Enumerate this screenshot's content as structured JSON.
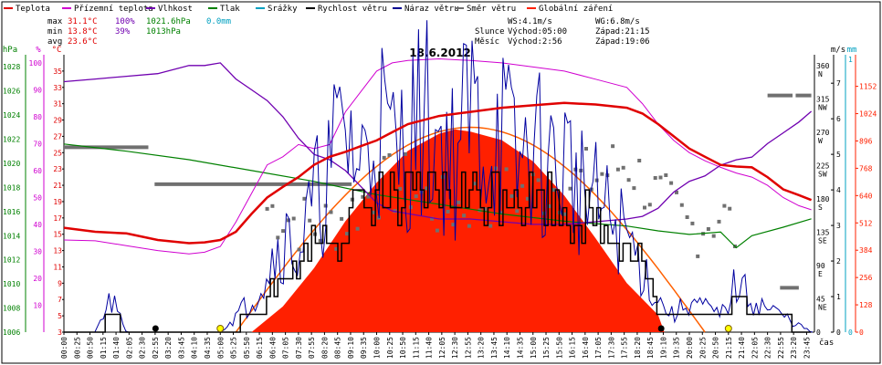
{
  "legend": [
    {
      "label": "Teplota",
      "color": "#e00000"
    },
    {
      "label": "Přízemní teplota",
      "color": "#d000d0"
    },
    {
      "label": "Vlhkost",
      "color": "#7000b0"
    },
    {
      "label": "Tlak",
      "color": "#008000"
    },
    {
      "label": "Srážky",
      "color": "#00a0c0"
    },
    {
      "label": "Rychlost větru",
      "color": "#000000"
    },
    {
      "label": "Náraz větru",
      "color": "#000090"
    },
    {
      "label": "Směr větru",
      "color": "#707070"
    },
    {
      "label": "Globální záření",
      "color": "#ff2000"
    }
  ],
  "stats": {
    "max_label": "max",
    "max_temp": "31.1°C",
    "max_hum": "100%",
    "max_press": "1021.6hPa",
    "max_rain": "0.0mm",
    "min_label": "min",
    "min_temp": "13.8°C",
    "min_hum": "39%",
    "min_press": "1013hPa",
    "avg_label": "avg",
    "avg_temp": "23.6°C"
  },
  "info": {
    "ws": "WS:4.1m/s",
    "wg": "WG:6.8m/s",
    "sun_label": "Slunce",
    "sun_rise": "Východ:05:00",
    "sun_set": "Západ:21:15",
    "moon_label": "Měsíc",
    "moon_rise": "Východ:2:56",
    "moon_set": "Západ:19:06"
  },
  "chart_data": {
    "type": "line",
    "title": "18.6.2012",
    "xlabel": "čas",
    "x_ticks": [
      "00:00",
      "00:25",
      "00:50",
      "01:15",
      "01:40",
      "02:05",
      "02:30",
      "02:55",
      "03:20",
      "03:45",
      "04:10",
      "04:35",
      "05:00",
      "05:25",
      "05:50",
      "06:15",
      "06:40",
      "07:05",
      "07:30",
      "07:55",
      "08:20",
      "08:45",
      "09:10",
      "09:35",
      "10:00",
      "10:25",
      "10:50",
      "11:15",
      "11:40",
      "12:05",
      "12:30",
      "12:55",
      "13:20",
      "13:45",
      "14:10",
      "14:35",
      "15:00",
      "15:25",
      "15:50",
      "16:15",
      "16:40",
      "17:05",
      "17:30",
      "17:55",
      "18:20",
      "18:45",
      "19:10",
      "19:35",
      "20:00",
      "20:25",
      "20:50",
      "21:15",
      "21:40",
      "22:05",
      "22:30",
      "22:55",
      "23:20",
      "23:45"
    ],
    "axes": {
      "pressure": {
        "unit": "hPa",
        "ticks": [
          "1028",
          "1026",
          "1024",
          "1022",
          "1020",
          "1018",
          "1016",
          "1014",
          "1012",
          "1010",
          "1008",
          "1006"
        ],
        "color": "#008000"
      },
      "humidity": {
        "unit": "%",
        "ticks": [
          "100",
          "90",
          "80",
          "70",
          "60",
          "50",
          "40",
          "30",
          "20",
          "10"
        ],
        "color": "#d000d0"
      },
      "temperature": {
        "unit": "°C",
        "ticks": [
          "35",
          "33",
          "31",
          "29",
          "27",
          "25",
          "23",
          "21",
          "19",
          "17",
          "15",
          "13",
          "11",
          "9",
          "7",
          "5",
          "3"
        ],
        "color": "#e00000"
      },
      "wind_dir": {
        "ticks": [
          "360",
          "315",
          "270",
          "225",
          "180",
          "135",
          "90",
          "45",
          "0"
        ],
        "dirs": [
          "N",
          "NW",
          "W",
          "SW",
          "S",
          "SE",
          "E",
          "NE",
          ""
        ]
      },
      "wind_speed": {
        "unit": "m/s",
        "ticks": [
          "7",
          "6",
          "5",
          "4",
          "3",
          "2",
          "1",
          "0"
        ]
      },
      "rain": {
        "unit": "mm",
        "ticks": [
          "1",
          "0"
        ],
        "color": "#00a0c0"
      },
      "radiation": {
        "ticks": [
          "1152",
          "1024",
          "896",
          "768",
          "640",
          "512",
          "384",
          "256",
          "128",
          "0"
        ],
        "color": "#ff2000"
      }
    },
    "series": [
      {
        "name": "Teplota",
        "unit": "°C",
        "x_hours": [
          0,
          1,
          2,
          3,
          4,
          4.5,
          5,
          5.5,
          6,
          6.5,
          7,
          7.5,
          8,
          8.5,
          9,
          9.5,
          10,
          10.5,
          11,
          12,
          13,
          14,
          15,
          16,
          17,
          18,
          18.5,
          19,
          19.5,
          20,
          20.5,
          21,
          21.5,
          22,
          22.5,
          23,
          23.5,
          23.9
        ],
        "values": [
          15.8,
          15.3,
          15.1,
          14.3,
          13.9,
          14.0,
          14.3,
          15.3,
          17.5,
          19.5,
          20.8,
          22.0,
          23.5,
          24.5,
          25.1,
          25.8,
          26.5,
          27.5,
          28.5,
          29.5,
          30.0,
          30.5,
          30.8,
          31.1,
          30.9,
          30.5,
          29.8,
          28.5,
          27.0,
          25.5,
          24.5,
          23.5,
          23.3,
          23.2,
          22.0,
          20.5,
          19.8,
          19.2
        ]
      },
      {
        "name": "Přízemní teplota",
        "unit": "°C",
        "x_hours": [
          0,
          1,
          2,
          3,
          4,
          4.5,
          5,
          5.5,
          6,
          6.5,
          7,
          7.5,
          8,
          8.5,
          9,
          9.5,
          10,
          10.5,
          11,
          12,
          13,
          14,
          15,
          16,
          17,
          18,
          18.5,
          19,
          19.5,
          20,
          20.5,
          21,
          21.5,
          22,
          22.5,
          23,
          23.5,
          23.9
        ],
        "values": [
          14.3,
          14.2,
          13.6,
          13.0,
          12.6,
          12.8,
          13.5,
          16.5,
          20.0,
          23.5,
          24.5,
          26.0,
          25.5,
          26.0,
          30.0,
          32.5,
          35.0,
          36.0,
          36.3,
          36.5,
          36.3,
          36.0,
          35.5,
          35.0,
          34.0,
          33.0,
          31.0,
          28.5,
          26.5,
          25.0,
          24.0,
          23.2,
          22.5,
          22.0,
          21.0,
          19.5,
          18.5,
          18.0
        ]
      },
      {
        "name": "Vlhkost",
        "unit": "%",
        "x_hours": [
          0,
          1,
          2,
          3,
          4,
          4.5,
          5,
          5.5,
          6,
          6.5,
          7,
          7.5,
          8,
          8.5,
          9,
          9.5,
          10,
          10.5,
          11,
          12,
          13,
          14,
          15,
          16,
          17,
          18,
          18.5,
          19,
          19.5,
          20,
          20.5,
          21,
          21.5,
          22,
          22.5,
          23,
          23.5,
          23.9
        ],
        "values": [
          93,
          94,
          95,
          96,
          99,
          99,
          100,
          94,
          90,
          86,
          80,
          72,
          66,
          64,
          60,
          54,
          48,
          45,
          44,
          42,
          42,
          41,
          40,
          40,
          41,
          42,
          43,
          46,
          52,
          56,
          58,
          62,
          64,
          65,
          70,
          74,
          78,
          82
        ]
      },
      {
        "name": "Tlak",
        "unit": "hPa",
        "x_hours": [
          0,
          2,
          4,
          6,
          8,
          10,
          12,
          14,
          16,
          18,
          19,
          20,
          21,
          21.5,
          22,
          23,
          23.9
        ],
        "values": [
          1021.6,
          1021.0,
          1020.3,
          1019.4,
          1018.5,
          1017.4,
          1016.6,
          1015.8,
          1015.2,
          1014.8,
          1014.4,
          1014.1,
          1014.3,
          1013.0,
          1014.0,
          1014.7,
          1015.4
        ]
      },
      {
        "name": "Globální záření",
        "x_hours": [
          6.0,
          7,
          8,
          9,
          10,
          11,
          12,
          12.5,
          13,
          14,
          15,
          16,
          17,
          18,
          19,
          19.2
        ],
        "values": [
          0,
          120,
          300,
          520,
          700,
          850,
          930,
          950,
          940,
          900,
          800,
          640,
          440,
          230,
          80,
          0
        ]
      },
      {
        "name": "Rychlost větru",
        "unit": "m/s",
        "x_hours": [
          0,
          1,
          1.5,
          2,
          3,
          5,
          6,
          6.5,
          7,
          7.5,
          8,
          9,
          10,
          11,
          12,
          13,
          14,
          15,
          16,
          17,
          18,
          18.5,
          19,
          19.5,
          20,
          21,
          21.5,
          22,
          23,
          23.9
        ],
        "values": [
          0,
          0,
          0.5,
          0,
          0,
          0,
          0.5,
          1,
          1.5,
          2,
          2.5,
          3,
          3.8,
          3.5,
          4,
          3.8,
          4.2,
          3.8,
          3.5,
          3,
          2.5,
          2,
          0.5,
          0.3,
          0.5,
          0.3,
          1,
          0.5,
          0.3,
          0
        ]
      },
      {
        "name": "Náraz větru",
        "unit": "m/s",
        "x_hours": [
          0,
          1,
          1.5,
          2,
          3,
          5,
          6,
          6.5,
          7,
          7.5,
          8,
          8.5,
          9,
          9.5,
          10,
          10.5,
          11,
          11.5,
          12,
          12.5,
          13,
          13.5,
          14,
          14.5,
          15,
          15.5,
          16,
          16.5,
          17,
          17.5,
          18,
          18.5,
          19,
          19.5,
          20,
          21,
          21.5,
          22,
          23,
          23.9
        ],
        "values": [
          0,
          0,
          1,
          0,
          0,
          0,
          1,
          2,
          3,
          2.5,
          4,
          5,
          6.5,
          5,
          7,
          5.5,
          6,
          6.8,
          6,
          5.5,
          7,
          5.8,
          6.5,
          5,
          6,
          5,
          5.5,
          4.5,
          4,
          3.5,
          3,
          2,
          1,
          0.5,
          1,
          0.5,
          1.5,
          1,
          0.5,
          0
        ]
      },
      {
        "name": "Směr větru",
        "unit": "°",
        "x_hours": [
          0,
          1,
          2,
          4,
          5,
          6,
          7,
          8,
          9,
          10,
          11,
          12,
          13,
          14,
          15,
          16,
          17,
          18,
          19,
          20,
          21,
          22,
          23,
          23.5
        ],
        "values": [
          250,
          250,
          200,
          175,
          175,
          175,
          160,
          140,
          155,
          195,
          200,
          165,
          175,
          185,
          190,
          200,
          210,
          230,
          180,
          140,
          160,
          110,
          60,
          320
        ]
      }
    ]
  }
}
